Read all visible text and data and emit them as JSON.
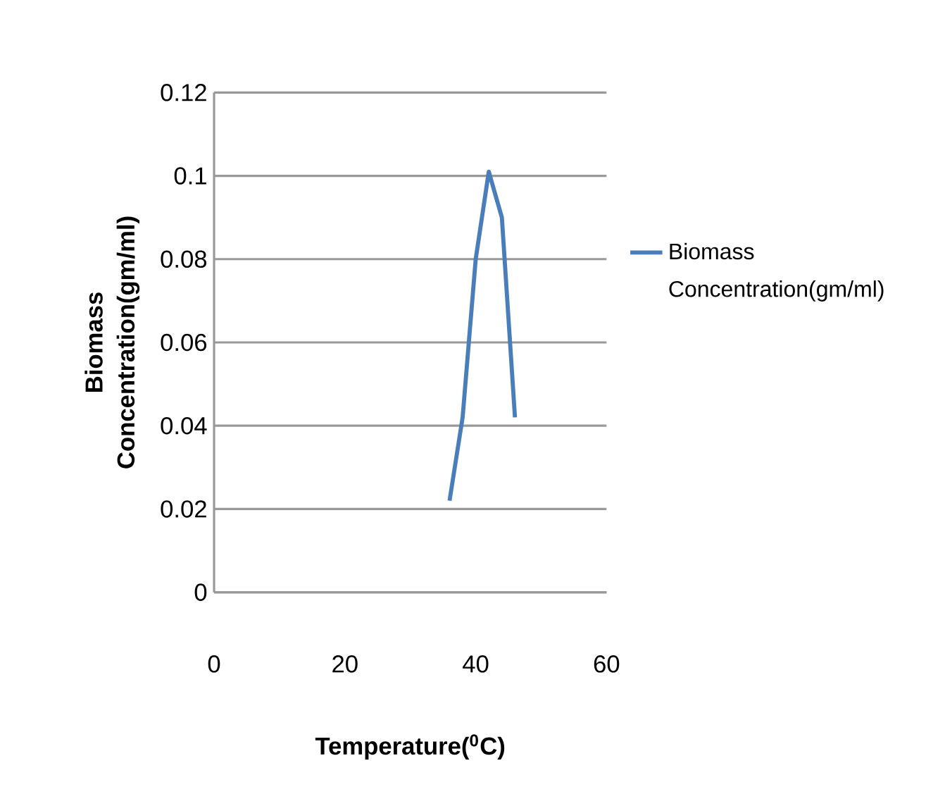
{
  "chart_data": {
    "type": "line",
    "xlabel": "Temperature($^{0}$C)",
    "ylabel": "Biomass Concentration(gm/ml)",
    "x": [
      36,
      38,
      40,
      42,
      44,
      46
    ],
    "series": [
      {
        "name": "Biomass Concentration(gm/ml)",
        "color": "#4a7ebb",
        "values": [
          0.022,
          0.042,
          0.08,
          0.101,
          0.09,
          0.042
        ]
      }
    ],
    "xlim": [
      0,
      60
    ],
    "xticks": [
      0,
      20,
      40,
      60
    ],
    "ylim": [
      0,
      0.12
    ],
    "yticks": [
      0,
      0.02,
      0.04,
      0.06,
      0.08,
      0.1,
      0.12
    ],
    "grid": "y",
    "legend": "right",
    "marker": "none",
    "line_style": "solid"
  }
}
